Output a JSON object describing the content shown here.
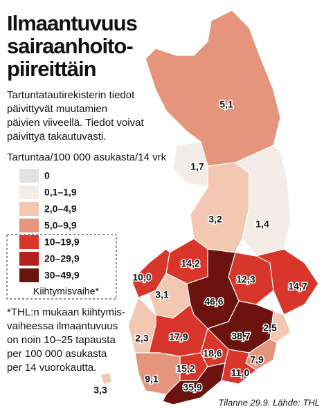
{
  "header": {
    "title": [
      "Ilmaantuvuus",
      "sairaanhoito-",
      "piireittäin"
    ],
    "description": [
      "Tartuntatautirekisterin tiedot",
      "päivittyvät muutamien",
      "päivien viiveellä. Tiedot voivat",
      "päivittyä takautuvasti."
    ]
  },
  "legend": {
    "title": "Tartuntaa/100 000 asukasta/14 vrk",
    "items": [
      {
        "label": "0",
        "color": "#e2e2e2"
      },
      {
        "label": "0,1–1,9",
        "color": "#f3ece7"
      },
      {
        "label": "2,0–4,9",
        "color": "#f2c8b3"
      },
      {
        "label": "5,0–9,9",
        "color": "#e4957c"
      },
      {
        "label": "10–19,9",
        "color": "#d8352b"
      },
      {
        "label": "20–29,9",
        "color": "#b2201b"
      },
      {
        "label": "30–49,9",
        "color": "#6c1310"
      }
    ],
    "note": "Kiihtymisvaihe*"
  },
  "footnote": [
    "*THL:n mukaan kiihtymis-",
    "vaiheessa ilmaantuvuus",
    "on noin 10–25 tapausta",
    "per 100 000 asukasta",
    "per 14 vuorokautta."
  ],
  "regions": [
    {
      "label": "5,1",
      "color": "#e4957c"
    },
    {
      "label": "1,7",
      "color": "#f3ece7"
    },
    {
      "label": "3,2",
      "color": "#f2c8b3"
    },
    {
      "label": "1,4",
      "color": "#f3ece7"
    },
    {
      "label": "14,2",
      "color": "#d8352b"
    },
    {
      "label": "10,0",
      "color": "#d8352b"
    },
    {
      "label": "3,1",
      "color": "#f2c8b3"
    },
    {
      "label": "12,3",
      "color": "#d8352b"
    },
    {
      "label": "14,7",
      "color": "#d8352b"
    },
    {
      "label": "46,6",
      "color": "#6c1310"
    },
    {
      "label": "2,3",
      "color": "#f2c8b3"
    },
    {
      "label": "17,9",
      "color": "#d8352b"
    },
    {
      "label": "38,7",
      "color": "#6c1310"
    },
    {
      "label": "2,5",
      "color": "#f2c8b3"
    },
    {
      "label": "7,9",
      "color": "#e4957c"
    },
    {
      "label": "18,6",
      "color": "#d8352b"
    },
    {
      "label": "15,2",
      "color": "#d8352b"
    },
    {
      "label": "11,0",
      "color": "#d8352b"
    },
    {
      "label": "9,1",
      "color": "#e4957c"
    },
    {
      "label": "35,9",
      "color": "#6c1310"
    },
    {
      "label": "3,3",
      "color": "#f2c8b3"
    }
  ],
  "source": "Tilanne 29.9. Lähde: THL"
}
